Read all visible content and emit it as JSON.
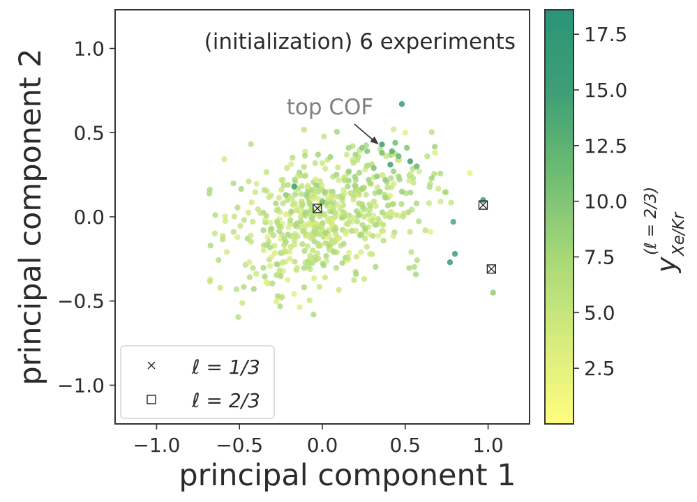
{
  "chart_data": {
    "type": "scatter",
    "title": "(initialization) 6 experiments",
    "xlabel": "principal component 1",
    "ylabel": "principal component 2",
    "xlim": [
      -1.25,
      1.25
    ],
    "ylim": [
      -1.23,
      1.23
    ],
    "x_ticks": [
      -1.0,
      -0.5,
      0.0,
      0.5,
      1.0
    ],
    "x_tick_labels": [
      "−1.0",
      "−0.5",
      "0.0",
      "0.5",
      "1.0"
    ],
    "y_ticks": [
      1.0,
      0.5,
      0.0,
      -0.5,
      -1.0
    ],
    "y_tick_labels": [
      "1.0",
      "0.5",
      "0.0",
      "−0.5",
      "−1.0"
    ],
    "grid": false,
    "annotation": {
      "text": "top COF",
      "x": 0.34,
      "y": 0.43
    },
    "colorbar": {
      "label_main": "y",
      "label_sup": "(ℓ = 2/3)",
      "label_sub": "Xe/Kr",
      "range": [
        0.0,
        18.6
      ],
      "ticks": [
        2.5,
        5.0,
        7.5,
        10.0,
        12.5,
        15.0,
        17.5
      ],
      "tick_labels": [
        "2.5",
        "5.0",
        "7.5",
        "10.0",
        "12.5",
        "15.0",
        "17.5"
      ],
      "colormap_colors": [
        "#fffd7e",
        "#d6ec7e",
        "#a8d878",
        "#6fbd74",
        "#3f9f75",
        "#2a9478"
      ]
    },
    "legend": {
      "location": "lower-left",
      "entries": [
        {
          "marker": "x",
          "label": "ℓ = 1/3"
        },
        {
          "marker": "square",
          "label": "ℓ = 2/3"
        }
      ]
    },
    "experiments": [
      {
        "x": 0.97,
        "y": 0.07,
        "l_one_third": true,
        "l_two_thirds": true
      },
      {
        "x": 1.02,
        "y": -0.31,
        "l_one_third": true,
        "l_two_thirds": true
      },
      {
        "x": -0.03,
        "y": 0.05,
        "l_one_third": true,
        "l_two_thirds": true
      }
    ],
    "highlight_points": [
      {
        "x": 0.48,
        "y": 0.67,
        "value": 17.0
      },
      {
        "x": 0.36,
        "y": 0.43,
        "value": 16.0
      },
      {
        "x": 0.42,
        "y": 0.39,
        "value": 13.0
      },
      {
        "x": 0.46,
        "y": 0.36,
        "value": 12.0
      },
      {
        "x": 0.53,
        "y": 0.33,
        "value": 15.0
      },
      {
        "x": 0.41,
        "y": 0.31,
        "value": 15.5
      },
      {
        "x": 0.51,
        "y": 0.41,
        "value": 10.0
      },
      {
        "x": 0.44,
        "y": 0.44,
        "value": 11.0
      },
      {
        "x": 0.31,
        "y": 0.29,
        "value": 10.5
      },
      {
        "x": 0.27,
        "y": 0.39,
        "value": 10.0
      },
      {
        "x": 0.24,
        "y": 0.41,
        "value": 9.5
      },
      {
        "x": 0.2,
        "y": 0.37,
        "value": 8.0
      },
      {
        "x": 0.36,
        "y": 0.38,
        "value": 10.0
      },
      {
        "x": 0.33,
        "y": 0.24,
        "value": 9.0
      },
      {
        "x": 0.28,
        "y": 0.22,
        "value": 8.0
      },
      {
        "x": 0.38,
        "y": 0.22,
        "value": 9.0
      },
      {
        "x": 0.46,
        "y": 0.24,
        "value": 7.5
      },
      {
        "x": 0.43,
        "y": 0.27,
        "value": 8.5
      },
      {
        "x": 0.48,
        "y": 0.15,
        "value": 8.5
      },
      {
        "x": 0.57,
        "y": 0.3,
        "value": 12.0
      },
      {
        "x": 0.66,
        "y": 0.23,
        "value": 8.0
      },
      {
        "x": -0.17,
        "y": 0.18,
        "value": 15.0
      },
      {
        "x": -0.22,
        "y": 0.13,
        "value": 9.0
      },
      {
        "x": 0.97,
        "y": 0.1,
        "value": 16.0
      },
      {
        "x": 0.79,
        "y": -0.03,
        "value": 14.0
      },
      {
        "x": 0.8,
        "y": -0.22,
        "value": 15.0
      },
      {
        "x": 0.77,
        "y": -0.27,
        "value": 16.5
      },
      {
        "x": 1.03,
        "y": -0.45,
        "value": 9.0
      },
      {
        "x": 0.89,
        "y": 0.26,
        "value": 2.0
      },
      {
        "x": 0.5,
        "y": 0.5,
        "value": 2.5
      },
      {
        "x": 0.68,
        "y": 0.38,
        "value": 3.0
      },
      {
        "x": 0.43,
        "y": 0.52,
        "value": 4.0
      },
      {
        "x": 0.0,
        "y": 0.09,
        "value": 11.0
      },
      {
        "x": 0.16,
        "y": 0.27,
        "value": 9.0
      }
    ],
    "cloud": {
      "count": 560,
      "x_range": [
        -0.85,
        0.8
      ],
      "y_range": [
        -0.67,
        0.53
      ],
      "value_range": [
        3.0,
        8.0
      ],
      "center": [
        0.0,
        0.0
      ]
    }
  }
}
